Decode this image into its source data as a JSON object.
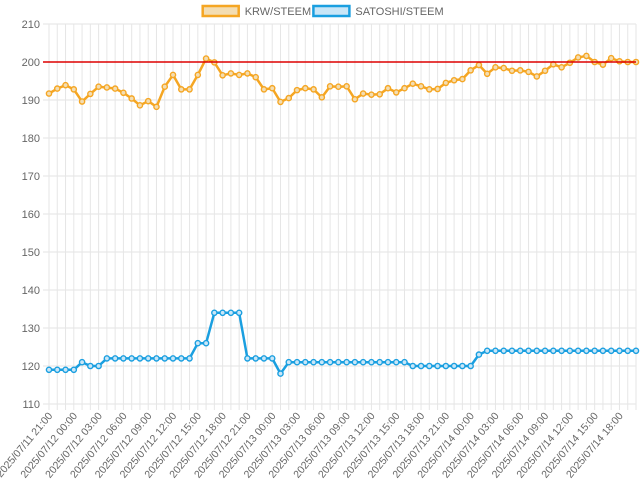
{
  "chart_data": {
    "type": "line",
    "title": "",
    "xlabel": "",
    "ylabel": "",
    "ylim": [
      110,
      210
    ],
    "y_ticks": [
      110,
      120,
      130,
      140,
      150,
      160,
      170,
      180,
      190,
      200,
      210
    ],
    "grid": true,
    "legend_position": "top-center",
    "x_tick_labels": [
      "2025/07/11 21:00",
      "2025/07/12 00:00",
      "2025/07/12 03:00",
      "2025/07/12 06:00",
      "2025/07/12 09:00",
      "2025/07/12 12:00",
      "2025/07/12 15:00",
      "2025/07/12 18:00",
      "2025/07/12 21:00",
      "2025/07/13 00:00",
      "2025/07/13 03:00",
      "2025/07/13 06:00",
      "2025/07/13 09:00",
      "2025/07/13 12:00",
      "2025/07/13 15:00",
      "2025/07/13 18:00",
      "2025/07/13 21:00",
      "2025/07/14 00:00",
      "2025/07/14 03:00",
      "2025/07/14 06:00",
      "2025/07/14 09:00",
      "2025/07/14 12:00",
      "2025/07/14 15:00",
      "2025/07/14 18:00"
    ],
    "x_points_count": 72,
    "series": [
      {
        "name": "KRW/STEEM",
        "color": "#f5a623",
        "fill": "#f3ddb2",
        "values": [
          191.7,
          193.0,
          193.9,
          192.8,
          189.6,
          191.6,
          193.5,
          193.3,
          193.0,
          191.9,
          190.4,
          188.6,
          189.7,
          188.2,
          193.5,
          196.6,
          192.8,
          192.8,
          196.6,
          200.9,
          199.9,
          196.5,
          197.0,
          196.6,
          197.0,
          196.0,
          192.8,
          193.1,
          189.5,
          190.5,
          192.6,
          193.1,
          192.8,
          190.7,
          193.6,
          193.5,
          193.6,
          190.2,
          191.7,
          191.4,
          191.5,
          193.1,
          192.0,
          193.1,
          194.3,
          193.6,
          192.8,
          192.9,
          194.5,
          195.2,
          195.5,
          197.8,
          199.2,
          196.9,
          198.6,
          198.4,
          197.7,
          197.8,
          197.4,
          196.2,
          197.7,
          199.4,
          198.6,
          199.8,
          201.2,
          201.6,
          200.0,
          199.3,
          201.0,
          200.2,
          200.0,
          200.0
        ]
      },
      {
        "name": "SATOSHI/STEEM",
        "color": "#1a9fe0",
        "fill": "#c9e6f7",
        "values": [
          119,
          119,
          119,
          119,
          121,
          120,
          120,
          122,
          122,
          122,
          122,
          122,
          122,
          122,
          122,
          122,
          122,
          122,
          126,
          126,
          134,
          134,
          134,
          134,
          122,
          122,
          122,
          122,
          118,
          121,
          121,
          121,
          121,
          121,
          121,
          121,
          121,
          121,
          121,
          121,
          121,
          121,
          121,
          121,
          120,
          120,
          120,
          120,
          120,
          120,
          120,
          120,
          123,
          124,
          124,
          124,
          124,
          124,
          124,
          124,
          124,
          124,
          124,
          124,
          124,
          124,
          124,
          124,
          124,
          124,
          124,
          124
        ]
      }
    ],
    "reference_line": {
      "value": 200,
      "color": "#dd0000"
    }
  }
}
